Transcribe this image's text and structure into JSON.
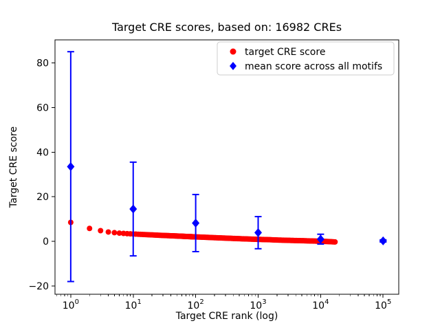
{
  "chart_data": {
    "type": "scatter",
    "title": "Target CRE scores, based on: 16982 CREs",
    "xlabel": "Target CRE rank (log)",
    "ylabel": "Target CRE score",
    "xscale": "log",
    "xlim": [
      0.56,
      178000
    ],
    "ylim": [
      -23.7,
      90.3
    ],
    "grid": false,
    "x_major_ticks": {
      "exponents": [
        0,
        1,
        2,
        3,
        4,
        5
      ]
    },
    "y_ticks": {
      "values": [
        -20,
        0,
        20,
        40,
        60,
        80
      ],
      "labels": [
        "−20",
        "0",
        "20",
        "40",
        "60",
        "80"
      ]
    },
    "legend": {
      "position": "upper right",
      "entries": [
        "target CRE score",
        "mean score across all motifs"
      ]
    },
    "series": [
      {
        "name": "target CRE score",
        "plot_type": "scatter",
        "marker": "circle",
        "color": "#ff0000",
        "total_points": 16982,
        "rank_max": 17000,
        "sample_ranks": [
          1,
          2,
          3,
          4,
          5,
          6,
          8,
          10,
          15,
          20,
          30,
          50,
          70,
          100,
          150,
          200,
          300,
          500,
          700,
          1000,
          1500,
          2000,
          3000,
          5000,
          7000,
          10000,
          13000,
          17000
        ],
        "sample_scores": [
          8.5,
          5.8,
          4.8,
          4.2,
          3.9,
          3.7,
          3.45,
          3.3,
          3.05,
          2.9,
          2.65,
          2.4,
          2.2,
          2.0,
          1.8,
          1.65,
          1.45,
          1.2,
          1.05,
          0.9,
          0.75,
          0.6,
          0.45,
          0.3,
          0.18,
          0.05,
          -0.08,
          -0.25
        ]
      },
      {
        "name": "mean score across all motifs",
        "plot_type": "errorbar",
        "marker": "diamond",
        "color": "#0000ff",
        "x": [
          1,
          10,
          100,
          1000,
          10000,
          100000
        ],
        "y": [
          33.5,
          14.5,
          8.2,
          3.9,
          1.0,
          0.2
        ],
        "yerr": [
          51.5,
          21.0,
          12.8,
          7.2,
          2.2,
          0.5
        ]
      }
    ]
  }
}
